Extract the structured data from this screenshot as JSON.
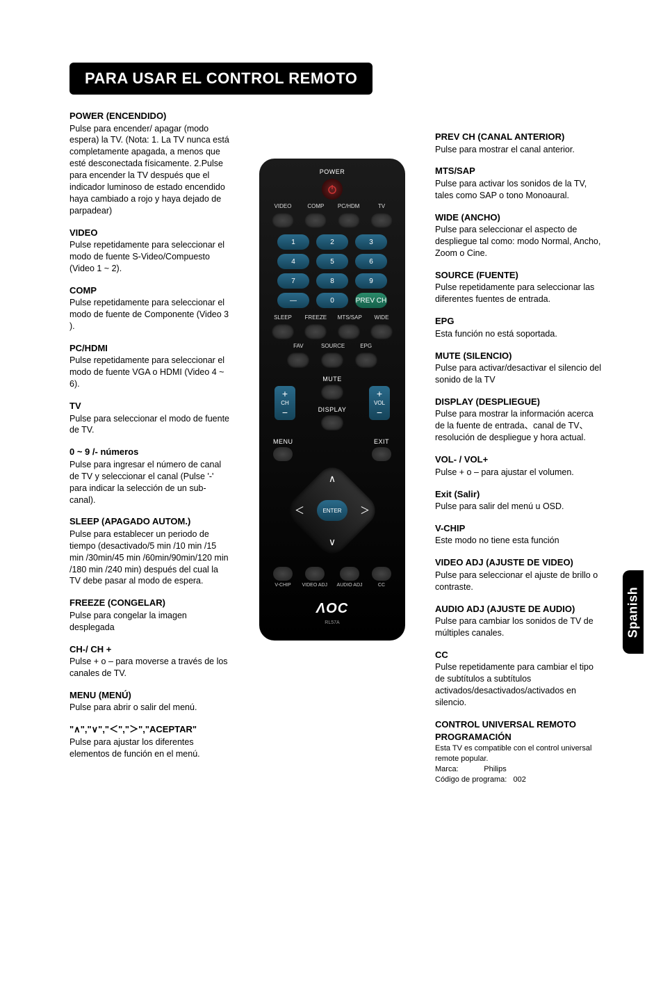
{
  "title": "PARA USAR EL CONTROL REMOTO",
  "sidetab": "Spanish",
  "left": [
    {
      "h": "POWER (ENCENDIDO)",
      "p": "Pulse para encender/ apagar (modo espera) la TV. (Nota: 1. La TV nunca está completamente apagada, a menos que esté desconectada físicamente. 2.Pulse para encender la TV después que el indicador luminoso de estado encendido haya cambiado a rojo y haya dejado de parpadear)"
    },
    {
      "h": "VIDEO",
      "p": "Pulse repetidamente para seleccionar el modo de fuente S-Video/Compuesto (Video 1 ~ 2)."
    },
    {
      "h": "COMP",
      "p": "Pulse repetidamente para seleccionar el modo de fuente de Componente (Video 3 )."
    },
    {
      "h": "PC/HDMI",
      "p": "Pulse repetidamente para seleccionar el modo de fuente VGA o HDMI (Video 4 ~ 6)."
    },
    {
      "h": "TV",
      "p": "Pulse para seleccionar el modo de fuente de TV."
    },
    {
      "h": "0 ~ 9 /- números",
      "p": "Pulse para ingresar el número de canal de TV y seleccionar el canal (Pulse '-' para indicar la selección de un sub-canal)."
    },
    {
      "h": "SLEEP (APAGADO AUTOM.)",
      "p": "Pulse para establecer un periodo de tiempo (desactivado/5 min /10 min /15 min /30min/45 min /60min/90min/120 min /180 min /240 min) después del cual la TV debe pasar al modo de espera."
    },
    {
      "h": "FREEZE (CONGELAR)",
      "p": "Pulse para congelar la imagen desplegada"
    },
    {
      "h": "CH-/ CH +",
      "p": "Pulse + o – para moverse a través de los canales de TV."
    },
    {
      "h": "MENU (MENÚ)",
      "p": "Pulse para abrir o salir del menú."
    },
    {
      "h": "__ARROWS__",
      "p": "Pulse para ajustar los diferentes elementos de función en el menú."
    }
  ],
  "right": [
    {
      "h": "PREV CH (CANAL ANTERIOR)",
      "p": "Pulse para mostrar el canal anterior."
    },
    {
      "h": "MTS/SAP",
      "p": "Pulse para activar los sonidos de la TV, tales como SAP o tono Monoaural."
    },
    {
      "h": "WIDE (ANCHO)",
      "p": "Pulse para seleccionar el aspecto de despliegue tal como: modo Normal, Ancho, Zoom o Cine."
    },
    {
      "h": "SOURCE (FUENTE)",
      "p": "Pulse repetidamente para seleccionar las diferentes fuentes de entrada."
    },
    {
      "h": "EPG",
      "p": "Esta función no está soportada."
    },
    {
      "h": "MUTE (SILENCIO)",
      "p": "Pulse para activar/desactivar el silencio del sonido de la TV"
    },
    {
      "h": "DISPLAY (DESPLIEGUE)",
      "p": "Pulse para mostrar la información acerca de la fuente de entrada、canal de TV、resolución de despliegue y hora actual."
    },
    {
      "h": "VOL- / VOL+",
      "p": "Pulse + o – para ajustar el volumen."
    },
    {
      "h": "Exit (Salir)",
      "p": "Pulse para salir del menú u OSD."
    },
    {
      "h": "V-CHIP",
      "p": "Este modo no tiene esta función"
    },
    {
      "h": "VIDEO ADJ (AJUSTE DE VIDEO)",
      "p": "Pulse para seleccionar el ajuste de brillo o contraste."
    },
    {
      "h": "AUDIO ADJ (AJUSTE DE AUDIO)",
      "p": "Pulse para cambiar los sonidos de TV de múltiples canales."
    },
    {
      "h": "CC",
      "p": "Pulse repetidamente para cambiar el tipo de subtítulos a subtítulos activados/desactivados/activados en silencio."
    },
    {
      "h": "CONTROL UNIVERSAL REMOTO PROGRAMACIÓN",
      "p": "__UNIV__"
    }
  ],
  "arrowsHeading": "\"∧\",\"∨\",\"＜\",\"＞\",\"ACEPTAR\"",
  "universal": {
    "l1": "Esta TV es compatible con el control universal remote popular.",
    "l2": "Marca:            Philips",
    "l3": "Código de programa:   002"
  },
  "remote": {
    "power": "POWER",
    "srcRow": [
      "VIDEO",
      "COMP",
      "PC/HDM",
      "TV"
    ],
    "nums": [
      [
        "1",
        "2",
        "3"
      ],
      [
        "4",
        "5",
        "6"
      ],
      [
        "7",
        "8",
        "9"
      ],
      [
        "—",
        "0",
        "PREV CH"
      ]
    ],
    "rowA": [
      "SLEEP",
      "FREEZE",
      "MTS/SAP",
      "WIDE"
    ],
    "rowB": [
      "FAV",
      "SOURCE",
      "EPG"
    ],
    "mute": "MUTE",
    "display": "DISPLAY",
    "ch": "CH",
    "vol": "VOL",
    "menu": "MENU",
    "exit": "EXIT",
    "enter": "ENTER",
    "bottom": [
      "V-CHIP",
      "VIDEO ADJ",
      "AUDIO ADJ",
      "CC"
    ],
    "brand": "ΛOC",
    "model": "RL57A"
  }
}
